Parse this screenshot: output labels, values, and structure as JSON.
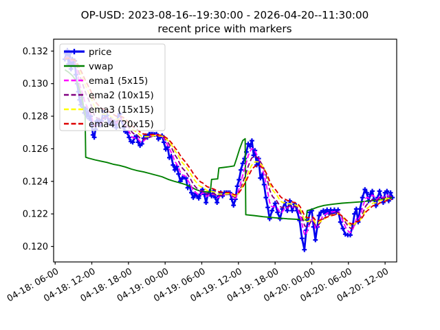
{
  "title": {
    "line1": "OP-USD: 2023-08-16--19:30:00 - 2026-04-20--11:30:00",
    "line2": "recent price with markers"
  },
  "chart_data": {
    "type": "line",
    "title": "OP-USD: 2023-08-16--19:30:00 - 2026-04-20--11:30:00",
    "subtitle": "recent price with markers",
    "xlabel": "",
    "ylabel": "",
    "grid": false,
    "legend_position": "upper-left",
    "x_unit": "hours since 04-18 00:00",
    "xlim": [
      5.75,
      61.9
    ],
    "ylim": [
      0.11905,
      0.13273
    ],
    "x_ticks": [
      {
        "t": 6,
        "label": "04-18: 06-00"
      },
      {
        "t": 12,
        "label": "04-18: 12-00"
      },
      {
        "t": 18,
        "label": "04-18: 18-00"
      },
      {
        "t": 24,
        "label": "04-19: 00-00"
      },
      {
        "t": 30,
        "label": "04-19: 06-00"
      },
      {
        "t": 36,
        "label": "04-19: 12-00"
      },
      {
        "t": 42,
        "label": "04-19: 18-00"
      },
      {
        "t": 48,
        "label": "04-20: 00-00"
      },
      {
        "t": 54,
        "label": "04-20: 06-00"
      },
      {
        "t": 60,
        "label": "04-20: 12-00"
      }
    ],
    "y_ticks": [
      {
        "v": 0.12,
        "label": "0.120"
      },
      {
        "v": 0.122,
        "label": "0.122"
      },
      {
        "v": 0.124,
        "label": "0.124"
      },
      {
        "v": 0.126,
        "label": "0.126"
      },
      {
        "v": 0.128,
        "label": "0.128"
      },
      {
        "v": 0.13,
        "label": "0.130"
      },
      {
        "v": 0.132,
        "label": "0.132"
      }
    ],
    "series": [
      {
        "name": "price",
        "color": "#0000ee",
        "style": "solid",
        "width": 2.7,
        "marker": "plus",
        "points": [
          [
            7.6,
            0.1315
          ],
          [
            7.8,
            0.13185
          ],
          [
            8.0,
            0.13205
          ],
          [
            8.2,
            0.1312
          ],
          [
            8.4,
            0.13185
          ],
          [
            8.6,
            0.1309
          ],
          [
            8.8,
            0.1315
          ],
          [
            9.0,
            0.13115
          ],
          [
            9.2,
            0.1314
          ],
          [
            9.4,
            0.13055
          ],
          [
            9.6,
            0.13
          ],
          [
            9.8,
            0.1295
          ],
          [
            10.0,
            0.129
          ],
          [
            10.2,
            0.1287
          ],
          [
            10.4,
            0.12915
          ],
          [
            10.6,
            0.12855
          ],
          [
            10.8,
            0.1282
          ],
          [
            11.0,
            0.12845
          ],
          [
            11.2,
            0.128
          ],
          [
            11.4,
            0.12825
          ],
          [
            11.6,
            0.12785
          ],
          [
            11.8,
            0.128
          ],
          [
            12.0,
            0.1274
          ],
          [
            12.2,
            0.12685
          ],
          [
            12.4,
            0.1267
          ],
          [
            12.6,
            0.1272
          ],
          [
            12.8,
            0.1277
          ],
          [
            13.0,
            0.12755
          ],
          [
            13.2,
            0.12775
          ],
          [
            13.4,
            0.12745
          ],
          [
            13.6,
            0.1277
          ],
          [
            13.9,
            0.12835
          ],
          [
            14.2,
            0.1279
          ],
          [
            14.5,
            0.12805
          ],
          [
            14.8,
            0.1276
          ],
          [
            15.1,
            0.1278
          ],
          [
            15.4,
            0.12745
          ],
          [
            15.7,
            0.12765
          ],
          [
            16.0,
            0.1273
          ],
          [
            16.3,
            0.128
          ],
          [
            16.6,
            0.12815
          ],
          [
            16.9,
            0.1277
          ],
          [
            17.2,
            0.1273
          ],
          [
            17.5,
            0.12705
          ],
          [
            17.8,
            0.127
          ],
          [
            18.1,
            0.1267
          ],
          [
            18.4,
            0.12645
          ],
          [
            18.7,
            0.1264
          ],
          [
            19.0,
            0.1267
          ],
          [
            19.3,
            0.12675
          ],
          [
            19.6,
            0.1264
          ],
          [
            19.9,
            0.1262
          ],
          [
            20.2,
            0.1263
          ],
          [
            20.5,
            0.12665
          ],
          [
            20.8,
            0.1268
          ],
          [
            21.1,
            0.1267
          ],
          [
            21.4,
            0.1269
          ],
          [
            21.7,
            0.1269
          ],
          [
            22.0,
            0.1269
          ],
          [
            22.3,
            0.12688
          ],
          [
            22.6,
            0.1269
          ],
          [
            22.9,
            0.1266
          ],
          [
            23.2,
            0.1267
          ],
          [
            23.5,
            0.1268
          ],
          [
            23.8,
            0.1264
          ],
          [
            24.1,
            0.12597
          ],
          [
            24.4,
            0.1261
          ],
          [
            24.7,
            0.12545
          ],
          [
            25.0,
            0.12555
          ],
          [
            25.3,
            0.125
          ],
          [
            25.6,
            0.1247
          ],
          [
            25.9,
            0.1249
          ],
          [
            26.2,
            0.12445
          ],
          [
            26.5,
            0.124
          ],
          [
            26.8,
            0.1242
          ],
          [
            27.1,
            0.12425
          ],
          [
            27.4,
            0.1242
          ],
          [
            27.7,
            0.1236
          ],
          [
            28.0,
            0.1237
          ],
          [
            28.3,
            0.1233
          ],
          [
            28.6,
            0.123
          ],
          [
            28.9,
            0.12325
          ],
          [
            29.2,
            0.1231
          ],
          [
            29.5,
            0.12296
          ],
          [
            29.8,
            0.1232
          ],
          [
            30.1,
            0.1235
          ],
          [
            30.4,
            0.1232
          ],
          [
            30.7,
            0.1227
          ],
          [
            31.0,
            0.1232
          ],
          [
            31.3,
            0.1234
          ],
          [
            31.6,
            0.1231
          ],
          [
            31.9,
            0.1234
          ],
          [
            32.2,
            0.123
          ],
          [
            32.5,
            0.1227
          ],
          [
            32.8,
            0.1231
          ],
          [
            33.1,
            0.1233
          ],
          [
            33.4,
            0.1231
          ],
          [
            33.7,
            0.1233
          ],
          [
            34.0,
            0.1233
          ],
          [
            34.3,
            0.1233
          ],
          [
            34.6,
            0.1233
          ],
          [
            34.9,
            0.1229
          ],
          [
            35.2,
            0.12253
          ],
          [
            35.5,
            0.1229
          ],
          [
            35.8,
            0.1237
          ],
          [
            36.1,
            0.1241
          ],
          [
            36.4,
            0.1247
          ],
          [
            36.7,
            0.1251
          ],
          [
            37.0,
            0.1254
          ],
          [
            37.3,
            0.1258
          ],
          [
            37.6,
            0.1263
          ],
          [
            37.9,
            0.12615
          ],
          [
            38.2,
            0.1265
          ],
          [
            38.5,
            0.1256
          ],
          [
            38.7,
            0.1259
          ],
          [
            39.0,
            0.125
          ],
          [
            39.3,
            0.1254
          ],
          [
            39.6,
            0.1242
          ],
          [
            39.9,
            0.1244
          ],
          [
            40.2,
            0.1238
          ],
          [
            40.5,
            0.123
          ],
          [
            40.8,
            0.1224
          ],
          [
            41.1,
            0.1217
          ],
          [
            41.5,
            0.1222
          ],
          [
            42.0,
            0.12265
          ],
          [
            42.4,
            0.1221
          ],
          [
            42.8,
            0.1217
          ],
          [
            43.2,
            0.1223
          ],
          [
            43.6,
            0.1227
          ],
          [
            44.0,
            0.1222
          ],
          [
            44.4,
            0.1228
          ],
          [
            44.8,
            0.1222
          ],
          [
            45.2,
            0.1226
          ],
          [
            45.6,
            0.1222
          ],
          [
            46.0,
            0.1216
          ],
          [
            46.4,
            0.1205
          ],
          [
            46.8,
            0.1198
          ],
          [
            47.1,
            0.121
          ],
          [
            47.4,
            0.1216
          ],
          [
            47.7,
            0.1221
          ],
          [
            48.0,
            0.1222
          ],
          [
            48.3,
            0.1212
          ],
          [
            48.6,
            0.1204
          ],
          [
            48.9,
            0.1212
          ],
          [
            49.2,
            0.1219
          ],
          [
            49.5,
            0.1221
          ],
          [
            49.9,
            0.1222
          ],
          [
            50.2,
            0.122
          ],
          [
            50.5,
            0.12225
          ],
          [
            50.8,
            0.12205
          ],
          [
            51.1,
            0.12225
          ],
          [
            51.4,
            0.12205
          ],
          [
            51.7,
            0.12225
          ],
          [
            52.0,
            0.1221
          ],
          [
            52.3,
            0.12225
          ],
          [
            52.7,
            0.1215
          ],
          [
            53.1,
            0.1211
          ],
          [
            53.5,
            0.12075
          ],
          [
            53.9,
            0.1207
          ],
          [
            54.3,
            0.1207
          ],
          [
            54.7,
            0.1213
          ],
          [
            55.0,
            0.122
          ],
          [
            55.3,
            0.1223
          ],
          [
            55.6,
            0.1215
          ],
          [
            55.9,
            0.1223
          ],
          [
            56.3,
            0.123
          ],
          [
            56.7,
            0.1235
          ],
          [
            57.0,
            0.1233
          ],
          [
            57.3,
            0.1228
          ],
          [
            57.6,
            0.1232
          ],
          [
            57.9,
            0.1234
          ],
          [
            58.2,
            0.1229
          ],
          [
            58.5,
            0.1225
          ],
          [
            58.8,
            0.123
          ],
          [
            59.1,
            0.1234
          ],
          [
            59.4,
            0.123
          ],
          [
            59.7,
            0.1227
          ],
          [
            60.0,
            0.1233
          ],
          [
            60.3,
            0.1234
          ],
          [
            60.6,
            0.1228
          ],
          [
            60.9,
            0.1233
          ],
          [
            61.2,
            0.123
          ]
        ]
      },
      {
        "name": "vwap",
        "color": "#008000",
        "style": "solid",
        "width": 1.9,
        "points": [
          [
            7.6,
            0.13085
          ],
          [
            8.2,
            0.1307
          ],
          [
            8.8,
            0.1305
          ],
          [
            9.4,
            0.1302
          ],
          [
            9.8,
            0.1299
          ],
          [
            10.2,
            0.1294
          ],
          [
            10.5,
            0.1289
          ],
          [
            10.8,
            0.1283
          ],
          [
            10.9,
            0.1282
          ],
          [
            11.0,
            0.12548
          ],
          [
            11.5,
            0.12542
          ],
          [
            12.5,
            0.12532
          ],
          [
            13.5,
            0.12524
          ],
          [
            14.5,
            0.12516
          ],
          [
            15.5,
            0.12505
          ],
          [
            16.5,
            0.12498
          ],
          [
            17.5,
            0.12488
          ],
          [
            18.5,
            0.12475
          ],
          [
            19.5,
            0.12465
          ],
          [
            20.5,
            0.12458
          ],
          [
            21.5,
            0.12448
          ],
          [
            22.5,
            0.12438
          ],
          [
            23.5,
            0.12428
          ],
          [
            24.5,
            0.12412
          ],
          [
            25.5,
            0.124
          ],
          [
            26.5,
            0.1239
          ],
          [
            27.5,
            0.12378
          ],
          [
            28.3,
            0.12365
          ],
          [
            29.0,
            0.1235
          ],
          [
            29.8,
            0.1234
          ],
          [
            30.8,
            0.12335
          ],
          [
            31.4,
            0.12335
          ],
          [
            31.6,
            0.12412
          ],
          [
            32.6,
            0.12415
          ],
          [
            32.8,
            0.12482
          ],
          [
            33.5,
            0.12485
          ],
          [
            34.5,
            0.1249
          ],
          [
            35.3,
            0.12495
          ],
          [
            35.7,
            0.1254
          ],
          [
            36.2,
            0.126
          ],
          [
            36.7,
            0.1265
          ],
          [
            37.1,
            0.12662
          ],
          [
            37.2,
            0.12195
          ],
          [
            38.5,
            0.1219
          ],
          [
            40.0,
            0.12183
          ],
          [
            42.0,
            0.12176
          ],
          [
            44.0,
            0.1217
          ],
          [
            46.0,
            0.12166
          ],
          [
            47.1,
            0.12163
          ],
          [
            47.25,
            0.1222
          ],
          [
            48.0,
            0.12228
          ],
          [
            49.0,
            0.12242
          ],
          [
            50.0,
            0.12252
          ],
          [
            51.5,
            0.1226
          ],
          [
            53.0,
            0.12266
          ],
          [
            54.5,
            0.1227
          ],
          [
            56.0,
            0.12274
          ],
          [
            57.5,
            0.1228
          ],
          [
            59.0,
            0.12286
          ],
          [
            60.2,
            0.12292
          ],
          [
            61.2,
            0.123
          ]
        ]
      },
      {
        "name": "ema1 (5x15)",
        "color": "#ff00ff",
        "style": "dashed",
        "width": 1.9,
        "derived": {
          "from": "price",
          "type": "ema",
          "span": 5,
          "step_hours": 0.25
        }
      },
      {
        "name": "ema2 (10x15)",
        "color": "#800080",
        "style": "dashed",
        "width": 1.9,
        "derived": {
          "from": "price",
          "type": "ema",
          "span": 10,
          "step_hours": 0.25
        }
      },
      {
        "name": "ema3 (15x15)",
        "color": "#ffff00",
        "style": "dashed",
        "width": 1.9,
        "derived": {
          "from": "price",
          "type": "ema",
          "span": 15,
          "step_hours": 0.25
        }
      },
      {
        "name": "ema4 (20x15)",
        "color": "#dd0000",
        "style": "dashed",
        "width": 1.9,
        "derived": {
          "from": "price",
          "type": "ema",
          "span": 20,
          "step_hours": 0.25
        }
      }
    ]
  },
  "legend": {
    "entries": [
      {
        "label": "price"
      },
      {
        "label": "vwap"
      },
      {
        "label": "ema1 (5x15)"
      },
      {
        "label": "ema2 (10x15)"
      },
      {
        "label": "ema3 (15x15)"
      },
      {
        "label": "ema4 (20x15)"
      }
    ]
  }
}
